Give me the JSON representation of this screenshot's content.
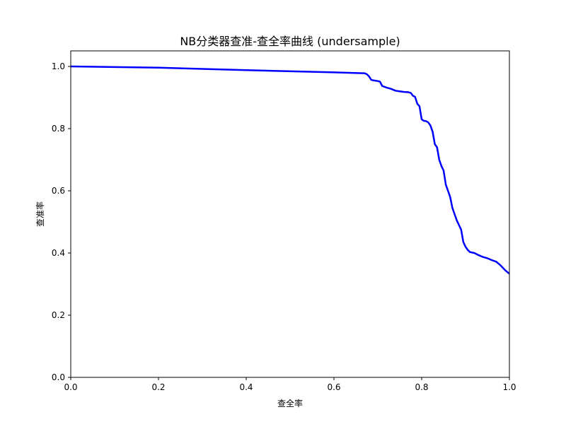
{
  "chart_data": {
    "type": "line",
    "title": "NB分类器查准-查全率曲线 (undersample)",
    "xlabel": "查全率",
    "ylabel": "查准率",
    "xlim": [
      0.0,
      1.0
    ],
    "ylim": [
      0.0,
      1.05
    ],
    "x_ticks": [
      "0.0",
      "0.2",
      "0.4",
      "0.6",
      "0.8",
      "1.0"
    ],
    "y_ticks": [
      "0.0",
      "0.2",
      "0.4",
      "0.6",
      "0.8",
      "1.0"
    ],
    "grid": false,
    "line_color": "#0000ff",
    "series": [
      {
        "x": [
          0.0,
          0.2,
          0.4,
          0.6,
          0.67,
          0.675,
          0.68,
          0.685,
          0.69,
          0.7,
          0.705,
          0.71,
          0.72,
          0.73,
          0.74,
          0.75,
          0.76,
          0.77,
          0.775,
          0.78,
          0.785,
          0.79,
          0.795,
          0.8,
          0.805,
          0.81,
          0.815,
          0.82,
          0.825,
          0.83,
          0.835,
          0.84,
          0.845,
          0.85,
          0.855,
          0.86,
          0.865,
          0.87,
          0.875,
          0.88,
          0.885,
          0.89,
          0.895,
          0.9,
          0.905,
          0.91,
          0.92,
          0.93,
          0.94,
          0.95,
          0.96,
          0.97,
          0.98,
          0.99,
          1.0
        ],
        "y": [
          1.0,
          0.996,
          0.988,
          0.981,
          0.978,
          0.975,
          0.968,
          0.957,
          0.955,
          0.953,
          0.951,
          0.937,
          0.932,
          0.928,
          0.922,
          0.92,
          0.918,
          0.917,
          0.915,
          0.906,
          0.902,
          0.88,
          0.872,
          0.83,
          0.825,
          0.824,
          0.82,
          0.81,
          0.79,
          0.75,
          0.74,
          0.7,
          0.68,
          0.665,
          0.62,
          0.6,
          0.58,
          0.545,
          0.525,
          0.505,
          0.49,
          0.475,
          0.435,
          0.42,
          0.41,
          0.403,
          0.4,
          0.393,
          0.387,
          0.383,
          0.377,
          0.372,
          0.36,
          0.345,
          0.333
        ]
      }
    ]
  }
}
